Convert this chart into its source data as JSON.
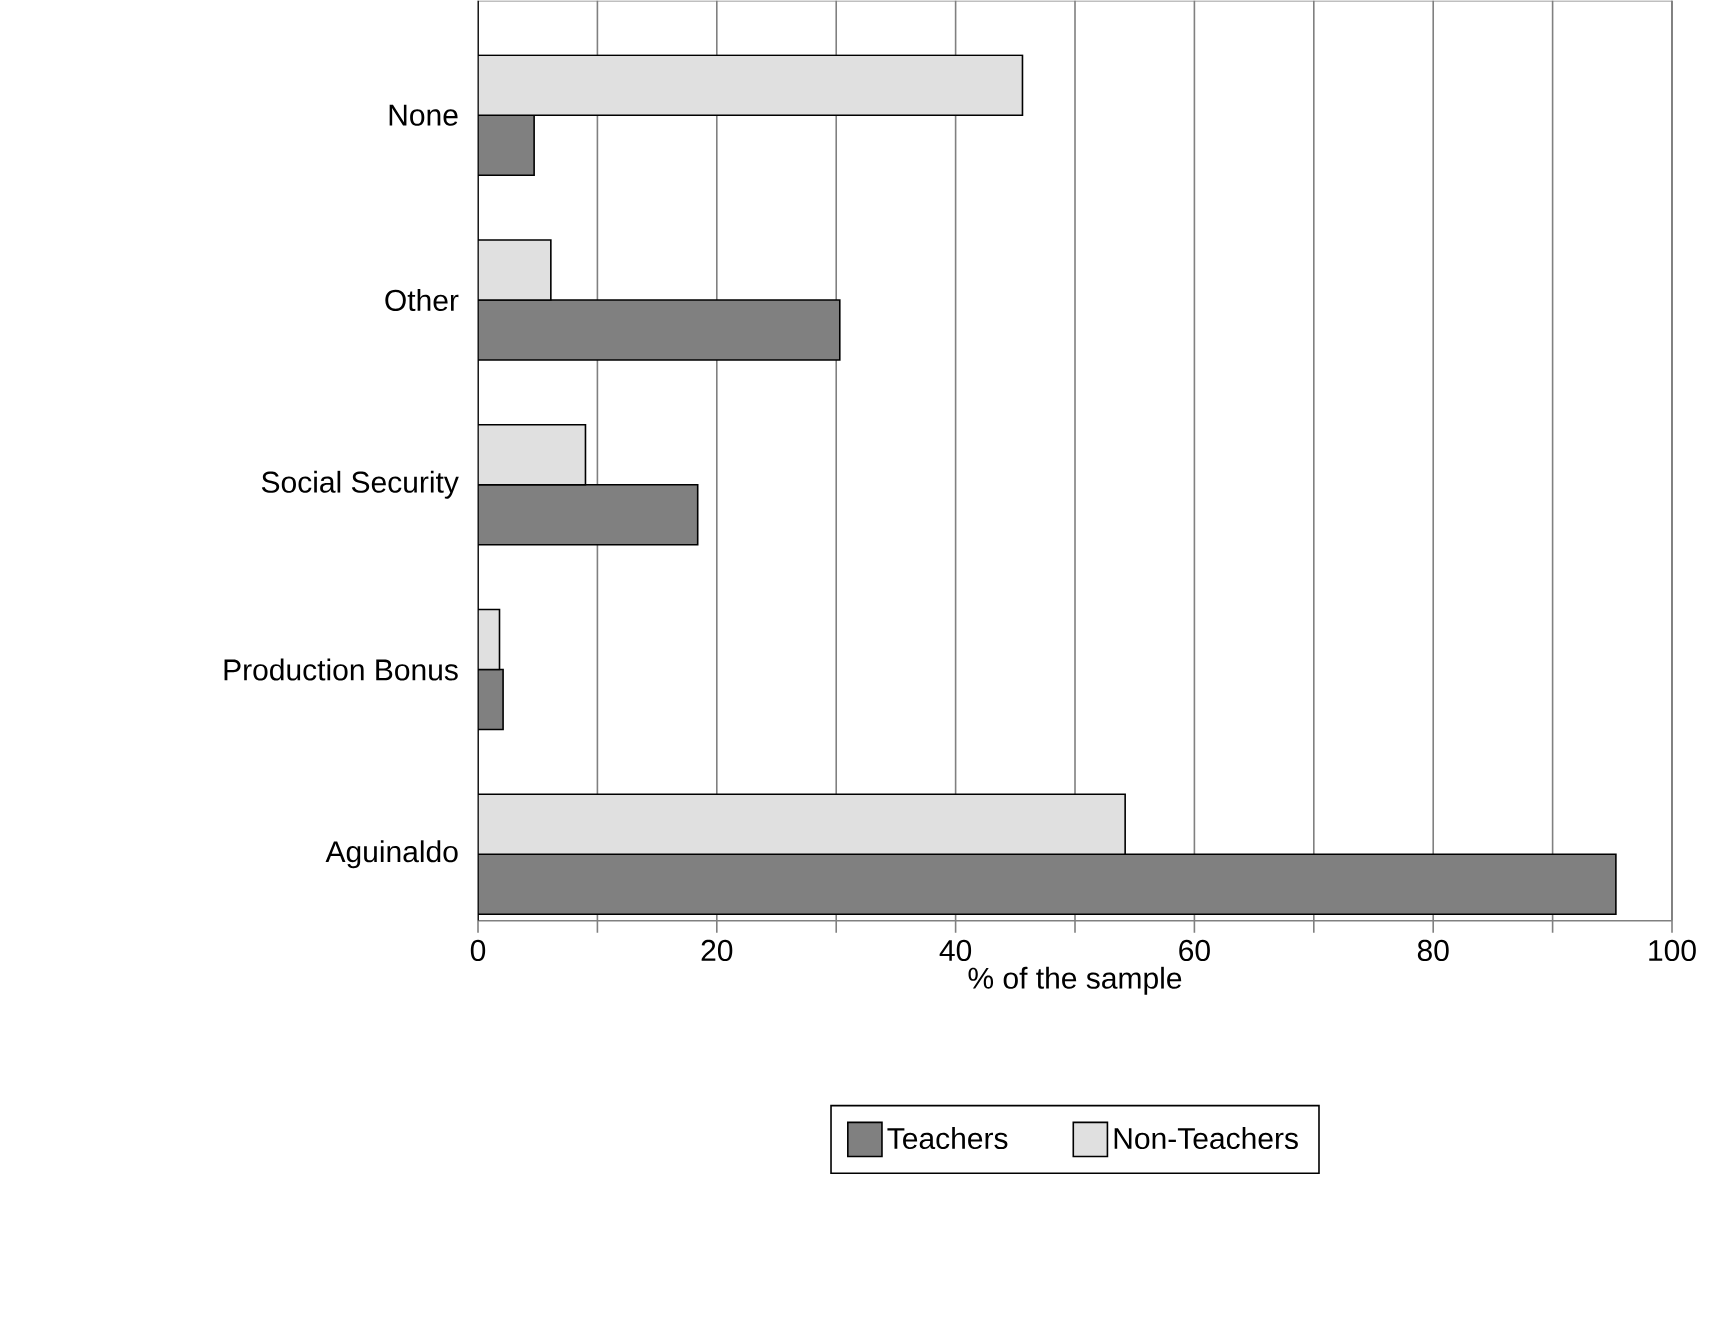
{
  "chart_data": {
    "type": "bar",
    "orientation": "horizontal",
    "xlabel": "% of the sample",
    "categories": [
      "None",
      "Other",
      "Social Security",
      "Production Bonus",
      "Aguinaldo"
    ],
    "series": [
      {
        "name": "Teachers",
        "color": "#808080",
        "values": [
          4.7,
          30.3,
          18.4,
          2.1,
          95.3
        ]
      },
      {
        "name": "Non-Teachers",
        "color": "#e0e0e0",
        "values": [
          45.6,
          6.1,
          9.0,
          1.8,
          54.2
        ]
      }
    ],
    "xlim": [
      0,
      100
    ],
    "xticks": [
      0,
      {
        "value": 10,
        "label": null
      },
      20,
      {
        "value": 30,
        "label": null
      },
      40,
      {
        "value": 50,
        "label": null
      },
      60,
      {
        "value": 70,
        "label": null
      },
      80,
      {
        "value": 90,
        "label": null
      },
      100
    ],
    "grid": "x",
    "legend": "bottom"
  }
}
